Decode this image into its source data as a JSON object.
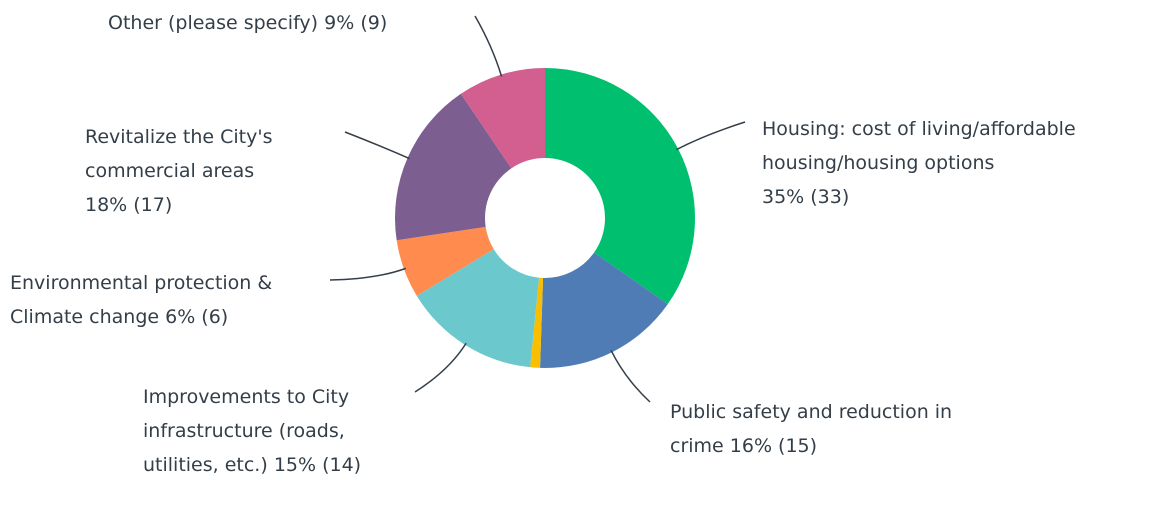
{
  "chart_data": {
    "type": "donut",
    "categories": [
      "Housing: cost of living/affordable housing/housing options",
      "Public safety and reduction in crime",
      null,
      "Improvements to City infrastructure (roads, utilities, etc.)",
      "Environmental protection & Climate change",
      "Revitalize the City's commercial areas",
      "Other (please specify)"
    ],
    "values": [
      33,
      15,
      1,
      14,
      6,
      17,
      9
    ],
    "value_labels": [
      "35% (33)",
      "16% (15)",
      null,
      "15% (14)",
      "6% (6)",
      "18% (17)",
      "9% (9)"
    ],
    "colors": [
      "#00bf6f",
      "#507cb6",
      "#f9be00",
      "#6bc8cd",
      "#ff8b4f",
      "#7d5e90",
      "#d25f90"
    ]
  }
}
